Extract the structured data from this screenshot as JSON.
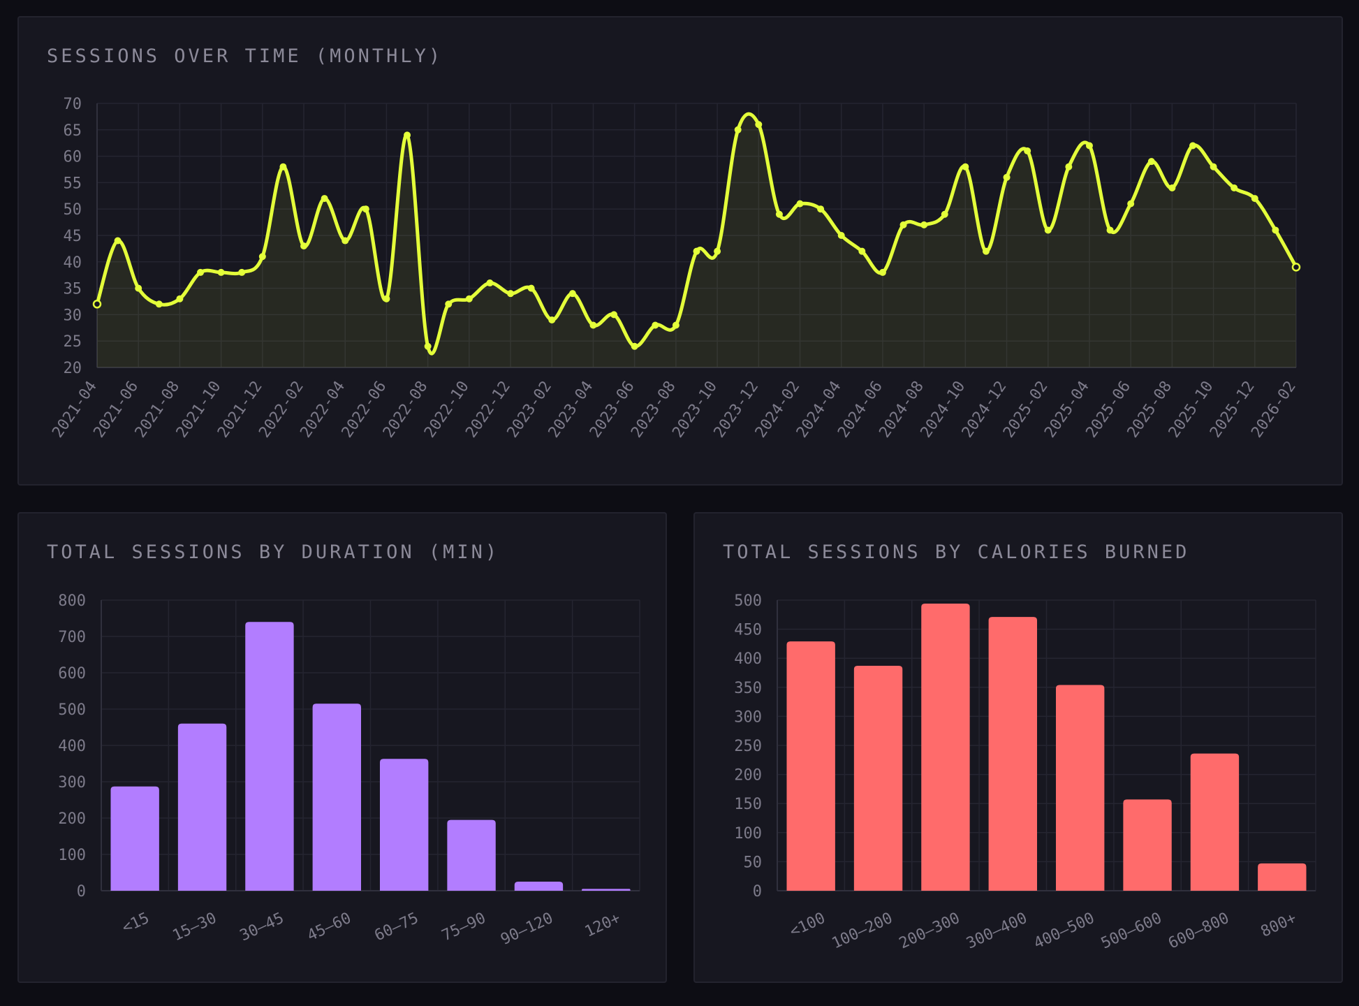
{
  "colors": {
    "background": "#0d0d14",
    "panel": "#171720",
    "line": "#e4ff3a",
    "duration_bars": "#b27dff",
    "calorie_bars": "#ff6b6b"
  },
  "chart_data": [
    {
      "type": "line",
      "title": "SESSIONS OVER TIME (MONTHLY)",
      "xlabel": "",
      "ylabel": "",
      "ylim": [
        20,
        70
      ],
      "yticks": [
        20,
        25,
        30,
        35,
        40,
        45,
        50,
        55,
        60,
        65,
        70
      ],
      "x_tick_labels": [
        "2021-04",
        "2021-06",
        "2021-08",
        "2021-10",
        "2021-12",
        "2022-02",
        "2022-04",
        "2022-06",
        "2022-08",
        "2022-10",
        "2022-12",
        "2023-02",
        "2023-04",
        "2023-06",
        "2023-08",
        "2023-10",
        "2023-12",
        "2024-02",
        "2024-04",
        "2024-06",
        "2024-08",
        "2024-10",
        "2024-12",
        "2025-02",
        "2025-04",
        "2025-06",
        "2025-08",
        "2025-10",
        "2025-12",
        "2026-02"
      ],
      "grid": true,
      "x_start": "2021-04",
      "values": [
        32,
        44,
        35,
        32,
        33,
        38,
        38,
        38,
        41,
        58,
        43,
        52,
        44,
        50,
        33,
        64,
        24,
        32,
        33,
        36,
        34,
        35,
        29,
        34,
        28,
        30,
        24,
        28,
        28,
        42,
        42,
        65,
        66,
        49,
        51,
        50,
        45,
        42,
        38,
        47,
        47,
        49,
        58,
        42,
        56,
        61,
        46,
        58,
        62,
        46,
        51,
        59,
        54,
        62,
        58,
        54,
        52,
        46,
        39
      ]
    },
    {
      "type": "bar",
      "title": "TOTAL SESSIONS BY DURATION (MIN)",
      "xlabel": "",
      "ylabel": "",
      "ylim": [
        0,
        800
      ],
      "yticks": [
        0,
        100,
        200,
        300,
        400,
        500,
        600,
        700,
        800
      ],
      "grid": true,
      "categories": [
        "<15",
        "15–30",
        "30–45",
        "45–60",
        "60–75",
        "75–90",
        "90–120",
        "120+"
      ],
      "values": [
        287,
        460,
        740,
        515,
        363,
        195,
        25,
        5
      ]
    },
    {
      "type": "bar",
      "title": "TOTAL SESSIONS BY CALORIES BURNED",
      "xlabel": "",
      "ylabel": "",
      "ylim": [
        0,
        500
      ],
      "yticks": [
        0,
        50,
        100,
        150,
        200,
        250,
        300,
        350,
        400,
        450,
        500
      ],
      "grid": true,
      "categories": [
        "<100",
        "100–200",
        "200–300",
        "300–400",
        "400–500",
        "500–600",
        "600–800",
        "800+"
      ],
      "values": [
        429,
        387,
        494,
        471,
        354,
        157,
        236,
        47
      ]
    }
  ]
}
